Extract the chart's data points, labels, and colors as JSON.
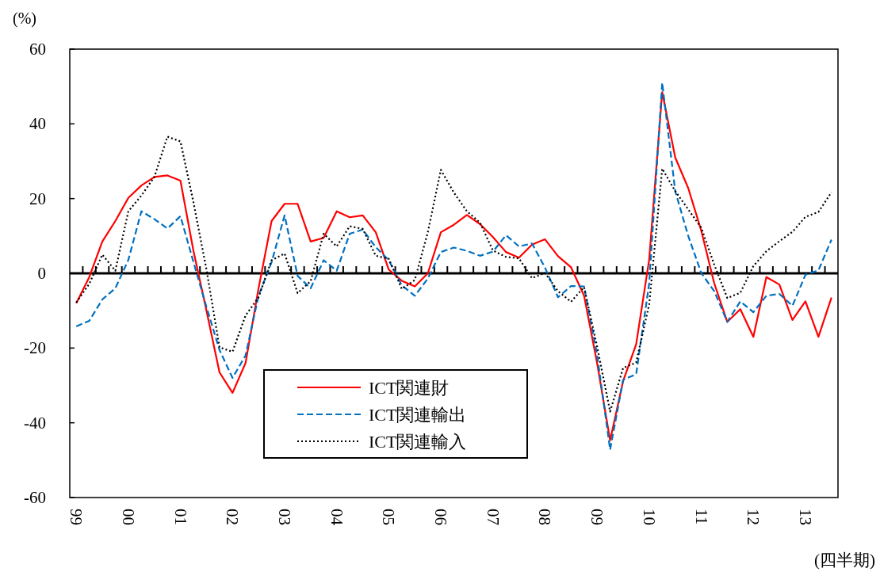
{
  "chart_data": {
    "type": "line",
    "xlabel": "(四半期)",
    "ylabel": "(%)",
    "categories": [
      "99",
      null,
      null,
      null,
      "00",
      null,
      null,
      null,
      "01",
      null,
      null,
      null,
      "02",
      null,
      null,
      null,
      "03",
      null,
      null,
      null,
      "04",
      null,
      null,
      null,
      "05",
      null,
      null,
      null,
      "06",
      null,
      null,
      null,
      "07",
      null,
      null,
      null,
      "08",
      null,
      null,
      null,
      "09",
      null,
      null,
      null,
      "10",
      null,
      null,
      null,
      "11",
      null,
      null,
      null,
      "12",
      null,
      null,
      null,
      "13",
      null,
      null
    ],
    "series": [
      {
        "name": "ICT関連財",
        "color": "#ff0000",
        "line_style": "solid",
        "values": [
          -8,
          -1,
          8.5,
          14,
          20.2,
          23.5,
          25.8,
          26.2,
          24.8,
          6,
          -10,
          -26.5,
          -32,
          -24,
          -4,
          14,
          18.6,
          18.6,
          8.5,
          9.5,
          16.6,
          15,
          15.5,
          11,
          1,
          -2,
          -3.5,
          0,
          11,
          13,
          15.6,
          13.2,
          9.7,
          5.7,
          4.2,
          7.7,
          9.1,
          4.6,
          1.6,
          -6,
          -24,
          -44.7,
          -28.8,
          -19,
          3.7,
          48.5,
          31,
          22.8,
          11.4,
          -2.7,
          -13,
          -9.6,
          -17,
          -1,
          -3,
          -12.5,
          -7.5,
          -17,
          -6.5
        ]
      },
      {
        "name": "ICT関連輸出",
        "color": "#0070c0",
        "line_style": "dashed",
        "values": [
          -14.2,
          -12.7,
          -7,
          -4,
          3.6,
          16.6,
          14.5,
          12,
          15.3,
          3,
          -9,
          -20.5,
          -28,
          -22,
          -6,
          3,
          15.5,
          -0.7,
          -4,
          3.5,
          0.7,
          10.6,
          11.7,
          7,
          3.5,
          -3.2,
          -6,
          -1.4,
          5.7,
          6.9,
          6,
          4.7,
          5.8,
          10.2,
          7.2,
          8,
          1.5,
          -6.4,
          -3.4,
          -3.5,
          -21.8,
          -47.2,
          -28.5,
          -27,
          -2.7,
          51,
          22,
          10,
          0.1,
          -4.8,
          -13,
          -7.5,
          -10.4,
          -6,
          -5.5,
          -8.7,
          -0.4,
          0.8,
          9
        ]
      },
      {
        "name": "ICT関連輸入",
        "color": "#000000",
        "line_style": "dotted",
        "values": [
          -7.8,
          -2.8,
          5,
          0.7,
          16.6,
          20.8,
          25.8,
          36.6,
          35.3,
          19,
          1,
          -19.8,
          -21,
          -11.3,
          -6.4,
          3.5,
          5.3,
          -5.3,
          -2.1,
          10.6,
          7.2,
          12.6,
          11.9,
          4.7,
          3.9,
          -4.2,
          -1.8,
          11,
          27.7,
          21.6,
          16.6,
          13.6,
          6.1,
          4.4,
          4,
          -1.3,
          0.1,
          -4.8,
          -7.6,
          -3.7,
          -19.6,
          -37,
          -25.3,
          -23.9,
          -8.3,
          28,
          22,
          17.1,
          12.2,
          2.3,
          -6.6,
          -5.2,
          1.9,
          5.9,
          8.6,
          11.1,
          15.1,
          16.4,
          21.7
        ]
      }
    ],
    "ylim": [
      -60,
      60
    ],
    "yticks": [
      -60,
      -40,
      -20,
      0,
      20,
      40,
      60
    ],
    "legend": "bottom",
    "marker": "none"
  }
}
